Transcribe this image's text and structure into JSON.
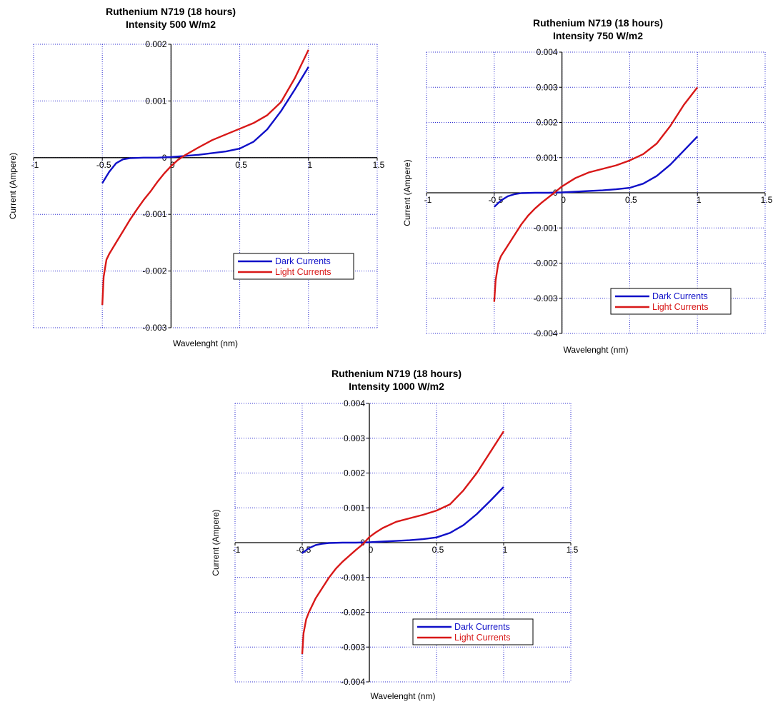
{
  "colors": {
    "dark": "#1010c8",
    "light": "#d81818",
    "grid": "#3030d0",
    "axis": "#000000"
  },
  "chart_data": [
    {
      "type": "line",
      "title": [
        "Ruthenium N719 (18 hours)",
        "Intensity 500 W/m2"
      ],
      "xlabel": "Wavelenght (nm)",
      "ylabel": "Current (Ampere)",
      "xlim": [
        -1,
        1.5
      ],
      "ylim": [
        -0.003,
        0.002
      ],
      "xticks": [
        -1,
        -0.5,
        0,
        0.5,
        1,
        1.5
      ],
      "xtick_labels": [
        "-1",
        "-0.5",
        "0",
        "0.5",
        "1",
        "1.5"
      ],
      "yticks": [
        -0.003,
        -0.002,
        -0.001,
        0,
        0.001,
        0.002
      ],
      "ytick_labels": [
        "-0.003",
        "-0.002",
        "-0.001",
        "0",
        "0.001",
        "0.002"
      ],
      "grid": true,
      "legend": "lower-right",
      "series": [
        {
          "name": "Dark Currents",
          "x": [
            -0.5,
            -0.45,
            -0.4,
            -0.35,
            -0.3,
            -0.2,
            -0.1,
            0,
            0.1,
            0.2,
            0.3,
            0.4,
            0.5,
            0.6,
            0.7,
            0.8,
            0.9,
            1
          ],
          "y": [
            -0.00045,
            -0.00025,
            -0.0001,
            -3e-05,
            -1e-05,
            0,
            0,
            1e-05,
            3e-05,
            5e-05,
            8e-05,
            0.00011,
            0.00016,
            0.00028,
            0.0005,
            0.00082,
            0.0012,
            0.0016
          ]
        },
        {
          "name": "Light Currents",
          "x": [
            -0.5,
            -0.49,
            -0.47,
            -0.45,
            -0.4,
            -0.35,
            -0.3,
            -0.25,
            -0.2,
            -0.15,
            -0.1,
            -0.05,
            0,
            0.05,
            0.1,
            0.2,
            0.3,
            0.4,
            0.5,
            0.6,
            0.7,
            0.8,
            0.9,
            1
          ],
          "y": [
            -0.0026,
            -0.0021,
            -0.0018,
            -0.0017,
            -0.0015,
            -0.0013,
            -0.0011,
            -0.00092,
            -0.00075,
            -0.0006,
            -0.00043,
            -0.00028,
            -0.00015,
            -4e-05,
            4e-05,
            0.00018,
            0.00031,
            0.00041,
            0.00051,
            0.00061,
            0.00075,
            0.00098,
            0.0014,
            0.0019
          ]
        }
      ]
    },
    {
      "type": "line",
      "title": [
        "Ruthenium N719 (18 hours)",
        "Intensity 750 W/m2"
      ],
      "xlabel": "Wavelenght (nm)",
      "ylabel": "Current (Ampere)",
      "xlim": [
        -1,
        1.5
      ],
      "ylim": [
        -0.004,
        0.004
      ],
      "xticks": [
        -1,
        -0.5,
        0,
        0.5,
        1,
        1.5
      ],
      "xtick_labels": [
        "-1",
        "-0.5",
        "0",
        "0.5",
        "1",
        "1.5"
      ],
      "yticks": [
        -0.004,
        -0.003,
        -0.002,
        -0.001,
        0,
        0.001,
        0.002,
        0.003,
        0.004
      ],
      "ytick_labels": [
        "-0.004",
        "-0.003",
        "-0.002",
        "-0.001",
        "0",
        "0.001",
        "0.002",
        "0.003",
        "0.004"
      ],
      "grid": true,
      "legend": "lower-right",
      "series": [
        {
          "name": "Dark Currents",
          "x": [
            -0.5,
            -0.45,
            -0.4,
            -0.35,
            -0.3,
            -0.2,
            -0.1,
            0,
            0.1,
            0.2,
            0.3,
            0.4,
            0.5,
            0.6,
            0.7,
            0.8,
            0.9,
            1
          ],
          "y": [
            -0.0004,
            -0.00022,
            -0.0001,
            -4e-05,
            -1e-05,
            0,
            0,
            1e-05,
            3e-05,
            5e-05,
            7e-05,
            0.0001,
            0.00014,
            0.00026,
            0.00048,
            0.0008,
            0.0012,
            0.0016
          ]
        },
        {
          "name": "Light Currents",
          "x": [
            -0.5,
            -0.49,
            -0.47,
            -0.45,
            -0.4,
            -0.35,
            -0.3,
            -0.25,
            -0.2,
            -0.15,
            -0.1,
            -0.05,
            0,
            0.05,
            0.1,
            0.2,
            0.3,
            0.4,
            0.5,
            0.6,
            0.7,
            0.8,
            0.9,
            1
          ],
          "y": [
            -0.0031,
            -0.0025,
            -0.002,
            -0.0018,
            -0.0015,
            -0.0012,
            -0.0009,
            -0.00065,
            -0.00045,
            -0.00028,
            -0.00013,
            2e-05,
            0.00018,
            0.0003,
            0.00042,
            0.00058,
            0.00068,
            0.00078,
            0.00092,
            0.0011,
            0.0014,
            0.0019,
            0.0025,
            0.003
          ]
        }
      ]
    },
    {
      "type": "line",
      "title": [
        "Ruthenium N719 (18 hours)",
        "Intensity 1000 W/m2"
      ],
      "xlabel": "Wavelenght (nm)",
      "ylabel": "Current (Ampere)",
      "xlim": [
        -1,
        1.5
      ],
      "ylim": [
        -0.004,
        0.004
      ],
      "xticks": [
        -1,
        -0.5,
        0,
        0.5,
        1,
        1.5
      ],
      "xtick_labels": [
        "-1",
        "-0.5",
        "0",
        "0.5",
        "1",
        "1.5"
      ],
      "yticks": [
        -0.004,
        -0.003,
        -0.002,
        -0.001,
        0,
        0.001,
        0.002,
        0.003,
        0.004
      ],
      "ytick_labels": [
        "-0.004",
        "-0.003",
        "-0.002",
        "-0.001",
        "0",
        "0.001",
        "0.002",
        "0.003",
        "0.004"
      ],
      "grid": true,
      "legend": "lower-right",
      "series": [
        {
          "name": "Dark Currents",
          "x": [
            -0.5,
            -0.45,
            -0.4,
            -0.35,
            -0.3,
            -0.2,
            -0.1,
            0,
            0.1,
            0.2,
            0.3,
            0.4,
            0.5,
            0.6,
            0.7,
            0.8,
            0.9,
            1
          ],
          "y": [
            -0.0003,
            -0.00016,
            -7e-05,
            -3e-05,
            -1e-05,
            0,
            0,
            1e-05,
            3e-05,
            5e-05,
            7e-05,
            0.0001,
            0.00015,
            0.00028,
            0.0005,
            0.00082,
            0.0012,
            0.0016
          ]
        },
        {
          "name": "Light Currents",
          "x": [
            -0.5,
            -0.49,
            -0.47,
            -0.45,
            -0.4,
            -0.35,
            -0.3,
            -0.25,
            -0.2,
            -0.15,
            -0.1,
            -0.05,
            0,
            0.05,
            0.1,
            0.2,
            0.3,
            0.4,
            0.5,
            0.6,
            0.7,
            0.8,
            0.9,
            1
          ],
          "y": [
            -0.0032,
            -0.0026,
            -0.0022,
            -0.002,
            -0.0016,
            -0.0013,
            -0.001,
            -0.00075,
            -0.00055,
            -0.00038,
            -0.00021,
            -5e-05,
            0.00016,
            0.0003,
            0.00042,
            0.0006,
            0.0007,
            0.0008,
            0.00092,
            0.0011,
            0.0015,
            0.002,
            0.0026,
            0.0032
          ]
        }
      ]
    }
  ]
}
